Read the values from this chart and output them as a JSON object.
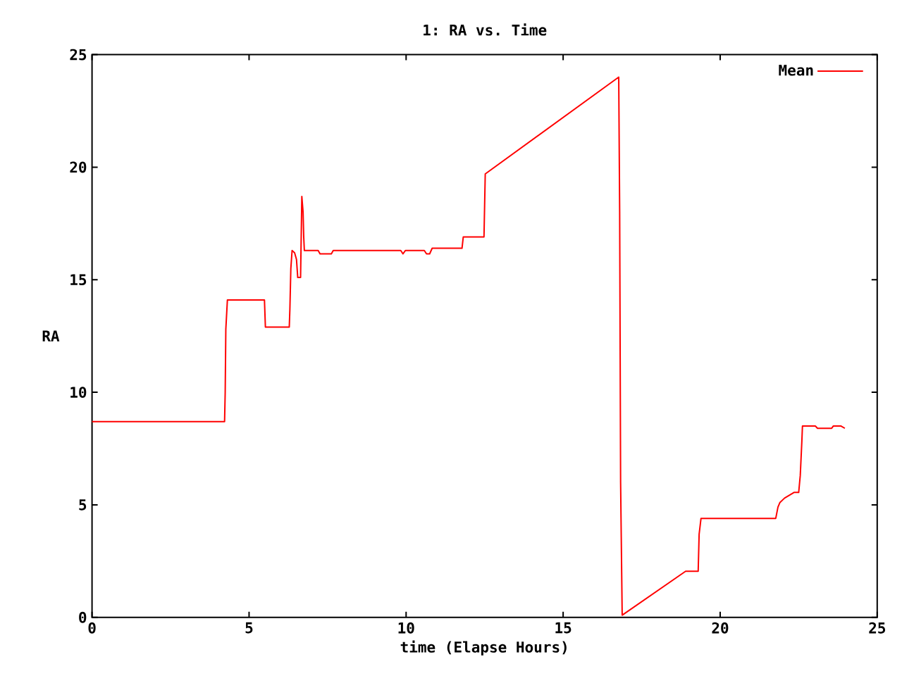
{
  "chart_data": {
    "type": "line",
    "title": "1: RA vs. Time",
    "xlabel": "time (Elapse Hours)",
    "ylabel": "RA",
    "xlim": [
      0,
      25
    ],
    "ylim": [
      0,
      25
    ],
    "xticks": [
      0,
      5,
      10,
      15,
      20,
      25
    ],
    "yticks": [
      0,
      5,
      10,
      15,
      20,
      25
    ],
    "legend": "top right",
    "line_style": "solid",
    "series": [
      {
        "name": "Mean",
        "color": "#ff0000",
        "x": [
          0,
          4.22,
          4.24,
          4.26,
          4.31,
          5.49,
          5.52,
          6.28,
          6.3,
          6.33,
          6.37,
          6.45,
          6.51,
          6.55,
          6.64,
          6.66,
          6.68,
          6.72,
          6.74,
          6.76,
          7.2,
          7.26,
          7.62,
          7.68,
          9.83,
          9.9,
          9.98,
          10.58,
          10.65,
          10.75,
          10.83,
          11.78,
          11.82,
          12.48,
          12.5,
          12.52,
          16.77,
          16.8,
          16.83,
          16.88,
          18.9,
          19.3,
          19.33,
          19.39,
          21.77,
          21.84,
          21.9,
          22.05,
          22.35,
          22.5,
          22.55,
          22.6,
          22.62,
          23.03,
          23.1,
          23.55,
          23.6,
          23.85,
          23.97
        ],
        "values": [
          8.7,
          8.7,
          10.0,
          12.8,
          14.1,
          14.1,
          12.9,
          12.9,
          13.7,
          15.5,
          16.3,
          16.2,
          15.9,
          15.1,
          15.1,
          16.9,
          18.7,
          18.0,
          16.9,
          16.3,
          16.3,
          16.15,
          16.15,
          16.3,
          16.3,
          16.15,
          16.3,
          16.3,
          16.15,
          16.15,
          16.4,
          16.4,
          16.9,
          16.9,
          18.3,
          19.7,
          24.0,
          18.0,
          6.0,
          0.1,
          2.05,
          2.05,
          3.7,
          4.4,
          4.4,
          4.9,
          5.1,
          5.3,
          5.55,
          5.55,
          6.3,
          7.8,
          8.5,
          8.5,
          8.4,
          8.4,
          8.5,
          8.5,
          8.4
        ]
      }
    ]
  }
}
